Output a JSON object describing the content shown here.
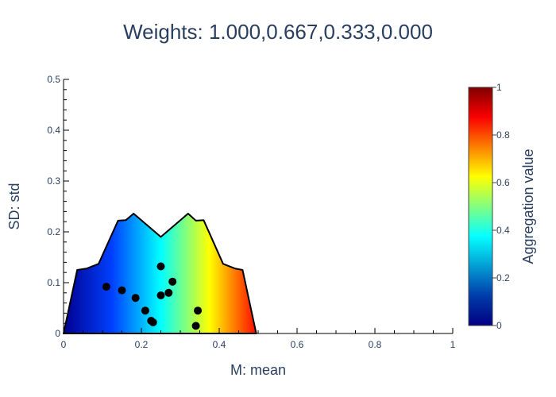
{
  "chart_data": {
    "type": "scatter",
    "title": "Weights: 1.000,0.667,0.333,0.000",
    "xlabel": "M: mean",
    "ylabel": "SD: std",
    "xlim": [
      0,
      1
    ],
    "ylim": [
      0,
      0.5
    ],
    "x_ticks": [
      "0",
      "0.2",
      "0.4",
      "0.6",
      "0.8",
      "1"
    ],
    "y_ticks": [
      "0",
      "0.1",
      "0.2",
      "0.3",
      "0.4",
      "0.5"
    ],
    "grid": false,
    "colorbar": {
      "title": "Aggregation value",
      "range": [
        0,
        1
      ],
      "ticks": [
        "0",
        "0.2",
        "0.4",
        "0.6",
        "0.8",
        "1"
      ],
      "colorscale": "jet"
    },
    "region_boundary": [
      [
        0.0,
        0.0
      ],
      [
        0.035,
        0.125
      ],
      [
        0.06,
        0.128
      ],
      [
        0.09,
        0.137
      ],
      [
        0.14,
        0.222
      ],
      [
        0.16,
        0.223
      ],
      [
        0.18,
        0.236
      ],
      [
        0.25,
        0.19
      ],
      [
        0.32,
        0.236
      ],
      [
        0.34,
        0.222
      ],
      [
        0.36,
        0.223
      ],
      [
        0.41,
        0.137
      ],
      [
        0.44,
        0.128
      ],
      [
        0.46,
        0.125
      ],
      [
        0.495,
        0.0
      ]
    ],
    "points": [
      {
        "x": 0.11,
        "y": 0.092
      },
      {
        "x": 0.15,
        "y": 0.085
      },
      {
        "x": 0.185,
        "y": 0.07
      },
      {
        "x": 0.21,
        "y": 0.045
      },
      {
        "x": 0.225,
        "y": 0.025
      },
      {
        "x": 0.23,
        "y": 0.022
      },
      {
        "x": 0.25,
        "y": 0.132
      },
      {
        "x": 0.25,
        "y": 0.075
      },
      {
        "x": 0.27,
        "y": 0.08
      },
      {
        "x": 0.28,
        "y": 0.102
      },
      {
        "x": 0.34,
        "y": 0.015
      },
      {
        "x": 0.345,
        "y": 0.045
      }
    ]
  }
}
